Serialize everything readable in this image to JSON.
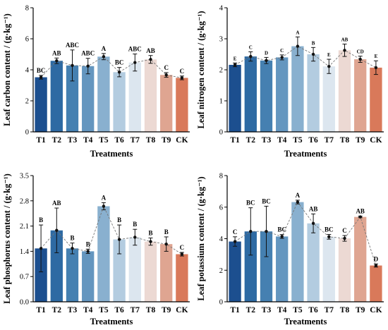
{
  "colors": {
    "bars": [
      "#1c4f8f",
      "#2e6aa3",
      "#4580b1",
      "#6496bf",
      "#89b0cf",
      "#b3cce0",
      "#dce6ef",
      "#ecd9d3",
      "#dfa591",
      "#d9795a"
    ],
    "line": "#777777",
    "marker": "#111111"
  },
  "chart_data": [
    {
      "type": "bar",
      "categories": [
        "T1",
        "T2",
        "T3",
        "T4",
        "T5",
        "T6",
        "T7",
        "T8",
        "T9",
        "CK"
      ],
      "values": [
        3.52,
        4.58,
        4.28,
        4.24,
        4.85,
        3.85,
        4.47,
        4.67,
        3.67,
        3.48
      ],
      "errors": [
        0.12,
        0.18,
        1.0,
        0.5,
        0.2,
        0.3,
        0.55,
        0.25,
        0.15,
        0.12
      ],
      "sig_letters": [
        "BC",
        "AB",
        "ABC",
        "ABC",
        "A",
        "BC",
        "ABC",
        "AB",
        "C",
        "C"
      ],
      "xlabel": "Treatments",
      "ylabel": "Leaf carbon content / (g·kg⁻¹)",
      "ylim": [
        0,
        8
      ],
      "yticks": [
        "0",
        "2",
        "4",
        "6",
        "8"
      ]
    },
    {
      "type": "bar",
      "categories": [
        "T1",
        "T2",
        "T3",
        "T4",
        "T5",
        "T6",
        "T7",
        "T8",
        "T9",
        "CK"
      ],
      "values": [
        2.16,
        2.43,
        2.3,
        2.4,
        2.76,
        2.5,
        2.11,
        2.63,
        2.34,
        2.07
      ],
      "errors": [
        0.06,
        0.15,
        0.1,
        0.08,
        0.3,
        0.22,
        0.23,
        0.2,
        0.1,
        0.22
      ],
      "sig_letters": [
        "E",
        "C",
        "D",
        "C",
        "A",
        "B",
        "E",
        "AB",
        "CD",
        "E"
      ],
      "xlabel": "Treatments",
      "ylabel": "Leaf nitrogen content / (g·kg⁻¹)",
      "ylim": [
        0,
        4
      ],
      "yticks": [
        "0",
        "1",
        "2",
        "3",
        "4"
      ]
    },
    {
      "type": "bar",
      "categories": [
        "T1",
        "T2",
        "T3",
        "T4",
        "T5",
        "T6",
        "T7",
        "T8",
        "T9",
        "CK"
      ],
      "values": [
        1.48,
        1.98,
        1.48,
        1.4,
        2.65,
        1.73,
        1.79,
        1.67,
        1.6,
        1.32
      ],
      "errors": [
        0.65,
        0.62,
        0.15,
        0.06,
        0.1,
        0.4,
        0.22,
        0.1,
        0.2,
        0.05
      ],
      "sig_letters": [
        "B",
        "AB",
        "B",
        "B",
        "A",
        "B",
        "B",
        "B",
        "B",
        "C"
      ],
      "xlabel": "Treatments",
      "ylabel": "Leaf phosphorus content / (g·kg⁻¹)",
      "ylim": [
        0,
        3.5
      ],
      "yticks": [
        "0.0",
        "0.7",
        "1.4",
        "2.1",
        "2.8",
        "3.5"
      ]
    },
    {
      "type": "bar",
      "categories": [
        "T1",
        "T2",
        "T3",
        "T4",
        "T5",
        "T6",
        "T7",
        "T8",
        "T9",
        "CK"
      ],
      "values": [
        3.82,
        4.46,
        4.46,
        4.14,
        6.32,
        4.97,
        4.12,
        4.02,
        5.38,
        2.3
      ],
      "errors": [
        0.3,
        1.5,
        1.6,
        0.12,
        0.12,
        0.6,
        0.15,
        0.18,
        0.05,
        0.1
      ],
      "sig_letters": [
        "C",
        "BC",
        "BC",
        "BC",
        "A",
        "AB",
        "BC",
        "C",
        "AB",
        "D"
      ],
      "xlabel": "Treatments",
      "ylabel": "Leaf potassium content / (g·kg⁻¹)",
      "ylim": [
        0,
        8
      ],
      "yticks": [
        "0",
        "2",
        "4",
        "6",
        "8"
      ]
    }
  ]
}
